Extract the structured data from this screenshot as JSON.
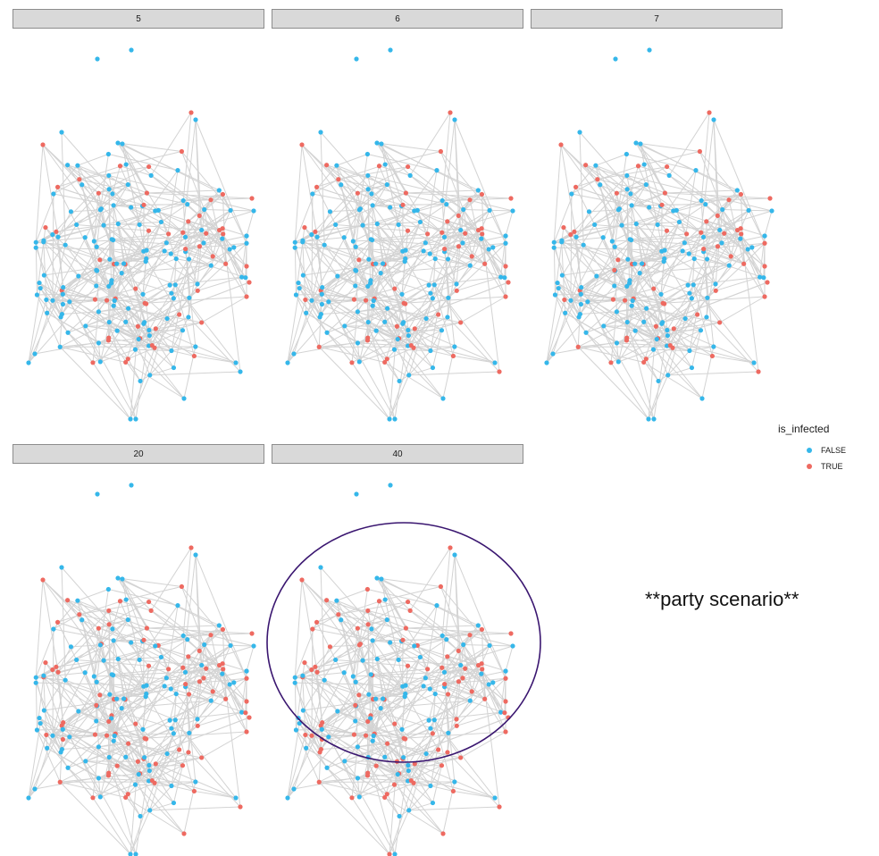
{
  "panels": [
    {
      "label": "5",
      "infected_fraction": 0.24
    },
    {
      "label": "6",
      "infected_fraction": 0.26
    },
    {
      "label": "7",
      "infected_fraction": 0.28
    },
    {
      "label": "20",
      "infected_fraction": 0.4
    },
    {
      "label": "40",
      "infected_fraction": 0.47
    }
  ],
  "legend": {
    "title": "is_infected",
    "items": [
      {
        "label": "FALSE",
        "color": "#35B7EA"
      },
      {
        "label": "TRUE",
        "color": "#EE6A61"
      }
    ]
  },
  "annotation": "**party scenario**",
  "highlighted_panel": "40",
  "colors": {
    "edge": "#d3d3d3",
    "strip_bg": "#d9d9d9",
    "highlight_ring": "#3a1670"
  }
}
